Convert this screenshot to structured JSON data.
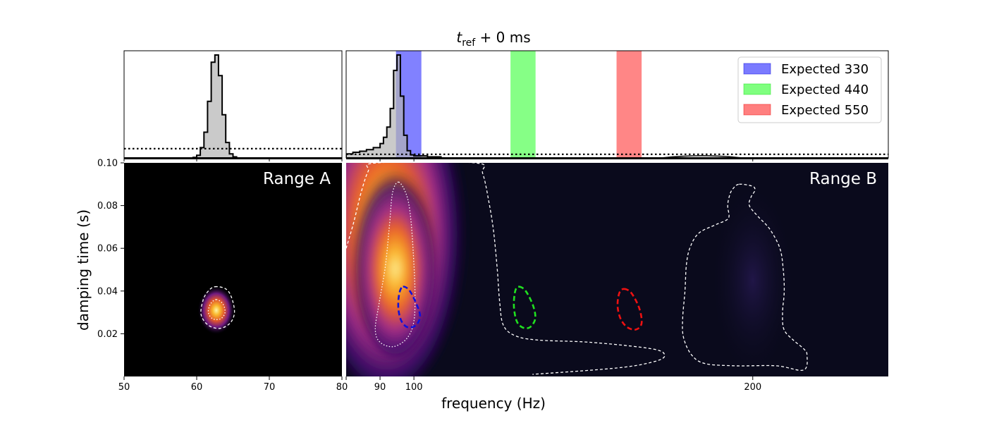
{
  "chart_data": {
    "type": "heatmap",
    "title": "t_ref + 0 ms",
    "title_parts": {
      "var": "t",
      "sub": "ref",
      "rest": " + 0 ms"
    },
    "xlabel": "frequency (Hz)",
    "ylabel": "damping time (s)",
    "yticks": [
      0.02,
      0.04,
      0.06,
      0.08,
      0.1
    ],
    "ytick_labels": [
      "0.02",
      "0.04",
      "0.06",
      "0.08",
      "0.10"
    ],
    "ylim": [
      0.0,
      0.1
    ],
    "colormap": "plasma-like",
    "panels": [
      {
        "id": "range-a",
        "label": "Range A",
        "xlim": [
          50,
          80
        ],
        "xticks": [
          50,
          60,
          70,
          80
        ],
        "xtick_labels": [
          "50",
          "60",
          "70",
          "80"
        ],
        "histogram": {
          "bins": [
            [
              59.5,
              60.0,
              0.005
            ],
            [
              60.0,
              60.5,
              0.025
            ],
            [
              60.5,
              61.0,
              0.1
            ],
            [
              61.0,
              61.5,
              0.25
            ],
            [
              61.5,
              62.0,
              0.55
            ],
            [
              62.0,
              62.5,
              0.93
            ],
            [
              62.5,
              63.0,
              1.0
            ],
            [
              63.0,
              63.5,
              0.8
            ],
            [
              63.5,
              64.0,
              0.42
            ],
            [
              64.0,
              64.5,
              0.15
            ],
            [
              64.5,
              65.0,
              0.04
            ],
            [
              65.0,
              65.5,
              0.01
            ]
          ],
          "prior_level": 0.09
        },
        "peak": {
          "x": 62.7,
          "y": 0.031
        },
        "contours": [
          {
            "style": "dashed-white",
            "points": [
              [
                62.5,
                0.042
              ],
              [
                64.0,
                0.041
              ],
              [
                64.8,
                0.037
              ],
              [
                65.2,
                0.03
              ],
              [
                64.6,
                0.025
              ],
              [
                63.2,
                0.0225
              ],
              [
                61.6,
                0.024
              ],
              [
                60.6,
                0.029
              ],
              [
                60.9,
                0.036
              ],
              [
                61.6,
                0.04
              ]
            ]
          },
          {
            "style": "dotted-white",
            "points": [
              [
                62.7,
                0.036
              ],
              [
                63.6,
                0.034
              ],
              [
                63.9,
                0.03
              ],
              [
                63.3,
                0.027
              ],
              [
                62.2,
                0.027
              ],
              [
                61.6,
                0.03
              ],
              [
                61.9,
                0.034
              ]
            ]
          }
        ]
      },
      {
        "id": "range-b",
        "label": "Range B",
        "xlim": [
          80,
          240
        ],
        "xticks": [
          90,
          100,
          200
        ],
        "xtick_labels": [
          "90",
          "100",
          "200"
        ],
        "histogram": {
          "bins": [
            [
              80,
              82,
              0.04
            ],
            [
              82,
              84,
              0.055
            ],
            [
              84,
              86,
              0.065
            ],
            [
              86,
              88,
              0.08
            ],
            [
              88,
              90,
              0.1
            ],
            [
              90,
              91,
              0.14
            ],
            [
              91,
              92,
              0.2
            ],
            [
              92,
              93,
              0.3
            ],
            [
              93,
              94,
              0.48
            ],
            [
              94,
              95,
              0.85
            ],
            [
              95,
              96,
              1.0
            ],
            [
              96,
              97,
              0.6
            ],
            [
              97,
              98,
              0.22
            ],
            [
              98,
              99,
              0.07
            ],
            [
              99,
              100,
              0.03
            ],
            [
              100,
              104,
              0.02
            ],
            [
              104,
              108,
              0.01
            ]
          ],
          "prior_level": 0.035,
          "small_bump": {
            "x": 185,
            "height": 0.015
          }
        },
        "peak": {
          "x": 96,
          "y": 0.04
        },
        "expected_bands": [
          {
            "name": "Expected 330",
            "x0": 94.7,
            "x1": 102.2,
            "color": "#7a7aff",
            "contour_color": "#1010dd",
            "contour": [
              [
                96.8,
                0.042
              ],
              [
                98.8,
                0.04
              ],
              [
                101.0,
                0.033
              ],
              [
                101.8,
                0.028
              ],
              [
                100.6,
                0.024
              ],
              [
                98.2,
                0.023
              ],
              [
                96.3,
                0.026
              ],
              [
                95.4,
                0.032
              ],
              [
                95.7,
                0.039
              ]
            ]
          },
          {
            "name": "Expected 440",
            "x0": 128.5,
            "x1": 135.9,
            "color": "#7fff7f",
            "contour_color": "#20e020",
            "contour": [
              [
                131.0,
                0.042
              ],
              [
                133.0,
                0.04
              ],
              [
                135.2,
                0.033
              ],
              [
                135.8,
                0.027
              ],
              [
                134.2,
                0.023
              ],
              [
                132.0,
                0.023
              ],
              [
                130.3,
                0.026
              ],
              [
                129.5,
                0.033
              ],
              [
                129.9,
                0.04
              ]
            ]
          },
          {
            "name": "Expected 550",
            "x0": 159.8,
            "x1": 167.2,
            "color": "#ff7f7f",
            "contour_color": "#ee1111",
            "contour": [
              [
                162.0,
                0.041
              ],
              [
                164.2,
                0.039
              ],
              [
                166.5,
                0.032
              ],
              [
                167.2,
                0.025
              ],
              [
                165.6,
                0.022
              ],
              [
                163.0,
                0.023
              ],
              [
                161.0,
                0.027
              ],
              [
                160.1,
                0.033
              ],
              [
                160.6,
                0.039
              ]
            ]
          }
        ],
        "contours": [
          {
            "style": "dashed-white",
            "points": [
              [
                80,
                0.06
              ],
              [
                82.2,
                0.072
              ],
              [
                84.4,
                0.086
              ],
              [
                86.5,
                0.096
              ],
              [
                89.0,
                0.1
              ],
              [
                118.0,
                0.1
              ],
              [
                120.3,
                0.095
              ],
              [
                122.1,
                0.082
              ],
              [
                123.5,
                0.068
              ],
              [
                124.6,
                0.05
              ],
              [
                125.3,
                0.035
              ],
              [
                126.4,
                0.024
              ],
              [
                130.0,
                0.019
              ],
              [
                137.0,
                0.017
              ],
              [
                152.0,
                0.016
              ],
              [
                170.0,
                0.013
              ],
              [
                174.0,
                0.01
              ],
              [
                171.0,
                0.007
              ],
              [
                160.0,
                0.004
              ],
              [
                135.0,
                0.001
              ]
            ]
          },
          {
            "style": "dotted-white",
            "points": [
              [
                95.5,
                0.091
              ],
              [
                97.8,
                0.085
              ],
              [
                99.0,
                0.075
              ],
              [
                99.8,
                0.058
              ],
              [
                100.3,
                0.04
              ],
              [
                100.0,
                0.026
              ],
              [
                98.0,
                0.018
              ],
              [
                94.0,
                0.014
              ],
              [
                90.0,
                0.016
              ],
              [
                88.6,
                0.022
              ],
              [
                89.7,
                0.034
              ],
              [
                91.6,
                0.052
              ],
              [
                92.8,
                0.071
              ],
              [
                93.7,
                0.086
              ]
            ]
          },
          {
            "style": "dashed-white",
            "points": [
              [
                196.0,
                0.09
              ],
              [
                200.0,
                0.089
              ],
              [
                200.6,
                0.087
              ],
              [
                199.5,
                0.084
              ],
              [
                199.0,
                0.08
              ],
              [
                201.5,
                0.075
              ],
              [
                205.0,
                0.069
              ],
              [
                208.0,
                0.06
              ],
              [
                209.0,
                0.05
              ],
              [
                209.3,
                0.04
              ],
              [
                208.8,
                0.03
              ],
              [
                209.2,
                0.022
              ],
              [
                212.0,
                0.017
              ],
              [
                215.0,
                0.013
              ],
              [
                216.0,
                0.01
              ],
              [
                215.0,
                0.003
              ],
              [
                207.0,
                0.005
              ],
              [
                195.0,
                0.005
              ],
              [
                186.0,
                0.006
              ],
              [
                182.0,
                0.01
              ],
              [
                179.6,
                0.018
              ],
              [
                179.3,
                0.027
              ],
              [
                180.0,
                0.04
              ],
              [
                180.4,
                0.052
              ],
              [
                181.4,
                0.06
              ],
              [
                184.0,
                0.067
              ],
              [
                189.0,
                0.071
              ],
              [
                192.0,
                0.073
              ],
              [
                193.0,
                0.075
              ],
              [
                192.6,
                0.08
              ],
              [
                193.2,
                0.085
              ],
              [
                194.2,
                0.088
              ]
            ]
          }
        ]
      }
    ],
    "legend": {
      "placement": "top-right",
      "entries": [
        "Expected 330",
        "Expected 440",
        "Expected 550"
      ]
    }
  }
}
